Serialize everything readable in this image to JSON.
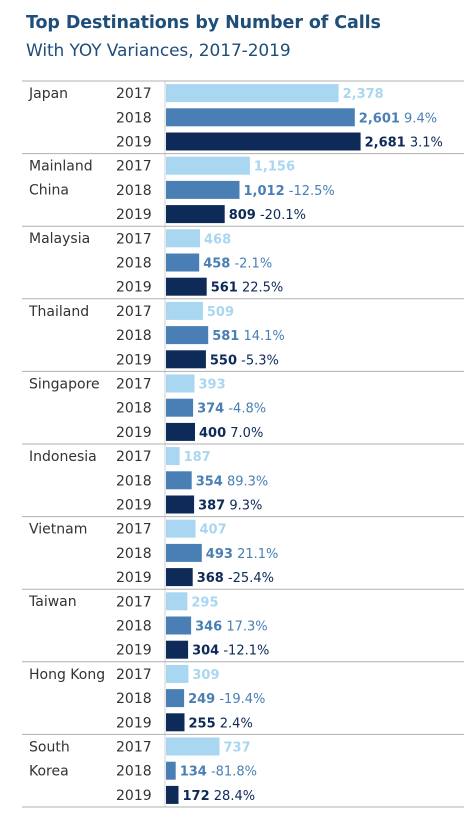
{
  "header": {
    "title": "Top Destinations by Number of Calls",
    "subtitle": "With YOY Variances, 2017-2019"
  },
  "colors": {
    "2017": "#a9d6f1",
    "2018": "#4a7fb5",
    "2019": "#0d2a58",
    "grid": "#b0b0b0"
  },
  "chart_data": {
    "type": "bar",
    "orientation": "horizontal",
    "title": "Top Destinations by Number of Calls",
    "subtitle": "With YOY Variances, 2017-2019",
    "years": [
      "2017",
      "2018",
      "2019"
    ],
    "xlim": [
      0,
      2700
    ],
    "groups": [
      {
        "country": [
          "Japan"
        ],
        "values": [
          2378,
          2601,
          2681
        ],
        "labels": [
          "2,378",
          "2,601",
          "2,681"
        ],
        "variances": [
          "",
          "9.4%",
          "3.1%"
        ]
      },
      {
        "country": [
          "Mainland",
          "China"
        ],
        "values": [
          1156,
          1012,
          809
        ],
        "labels": [
          "1,156",
          "1,012",
          "809"
        ],
        "variances": [
          "",
          "-12.5%",
          "-20.1%"
        ]
      },
      {
        "country": [
          "Malaysia"
        ],
        "values": [
          468,
          458,
          561
        ],
        "labels": [
          "468",
          "458",
          "561"
        ],
        "variances": [
          "",
          "-2.1%",
          "22.5%"
        ]
      },
      {
        "country": [
          "Thailand"
        ],
        "values": [
          509,
          581,
          550
        ],
        "labels": [
          "509",
          "581",
          "550"
        ],
        "variances": [
          "",
          "14.1%",
          "-5.3%"
        ]
      },
      {
        "country": [
          "Singapore"
        ],
        "values": [
          393,
          374,
          400
        ],
        "labels": [
          "393",
          "374",
          "400"
        ],
        "variances": [
          "",
          "-4.8%",
          "7.0%"
        ]
      },
      {
        "country": [
          "Indonesia"
        ],
        "values": [
          187,
          354,
          387
        ],
        "labels": [
          "187",
          "354",
          "387"
        ],
        "variances": [
          "",
          "89.3%",
          "9.3%"
        ]
      },
      {
        "country": [
          "Vietnam"
        ],
        "values": [
          407,
          493,
          368
        ],
        "labels": [
          "407",
          "493",
          "368"
        ],
        "variances": [
          "",
          "21.1%",
          "-25.4%"
        ]
      },
      {
        "country": [
          "Taiwan"
        ],
        "values": [
          295,
          346,
          304
        ],
        "labels": [
          "295",
          "346",
          "304"
        ],
        "variances": [
          "",
          "17.3%",
          "-12.1%"
        ]
      },
      {
        "country": [
          "Hong Kong"
        ],
        "values": [
          309,
          249,
          255
        ],
        "labels": [
          "309",
          "249",
          "255"
        ],
        "variances": [
          "",
          "-19.4%",
          "2.4%"
        ]
      },
      {
        "country": [
          "South",
          "Korea"
        ],
        "values": [
          737,
          134,
          172
        ],
        "labels": [
          "737",
          "134",
          "172"
        ],
        "variances": [
          "",
          "-81.8%",
          "28.4%"
        ]
      }
    ]
  }
}
